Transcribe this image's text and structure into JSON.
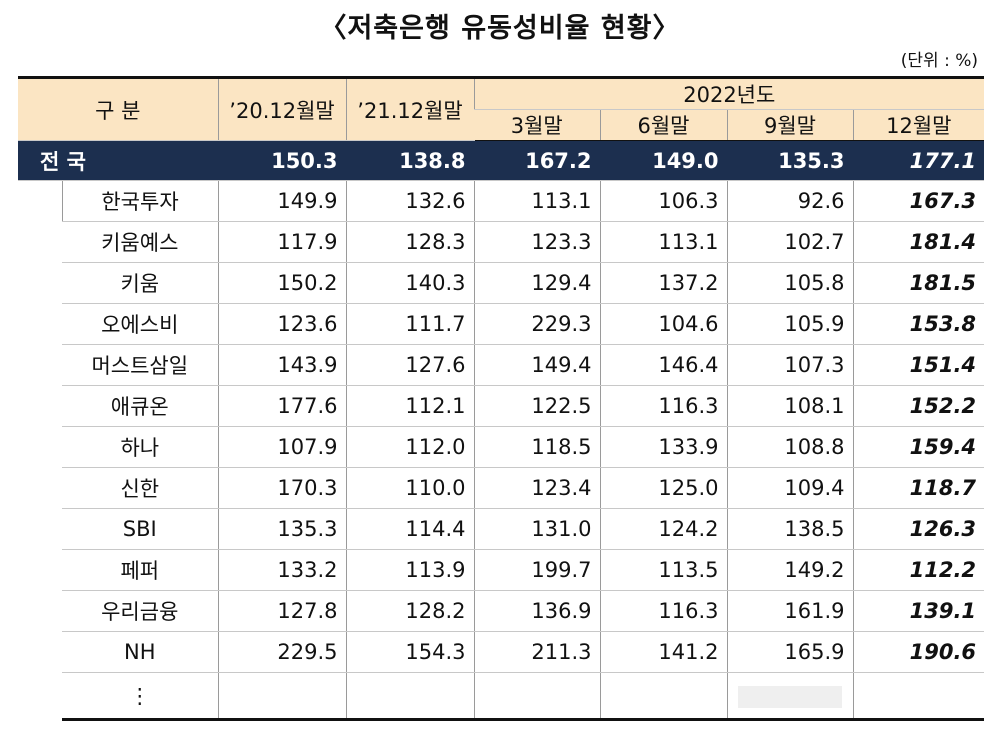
{
  "title": "〈저축은행 유동성비율 현황〉",
  "unit": "(단위 : %)",
  "table": {
    "header": {
      "category": "구     분",
      "columns": [
        "’20.12월말",
        "’21.12월말"
      ],
      "group": "2022년도",
      "subcolumns": [
        "3월말",
        "6월말",
        "9월말",
        "12월말"
      ]
    },
    "total": {
      "label": "전   국",
      "values": [
        "150.3",
        "138.8",
        "167.2",
        "149.0",
        "135.3",
        "177.1"
      ]
    },
    "rows": [
      {
        "label": "한국투자",
        "values": [
          "149.9",
          "132.6",
          "113.1",
          "106.3",
          "92.6",
          "167.3"
        ]
      },
      {
        "label": "키움예스",
        "values": [
          "117.9",
          "128.3",
          "123.3",
          "113.1",
          "102.7",
          "181.4"
        ]
      },
      {
        "label": "키움",
        "values": [
          "150.2",
          "140.3",
          "129.4",
          "137.2",
          "105.8",
          "181.5"
        ]
      },
      {
        "label": "오에스비",
        "values": [
          "123.6",
          "111.7",
          "229.3",
          "104.6",
          "105.9",
          "153.8"
        ]
      },
      {
        "label": "머스트삼일",
        "values": [
          "143.9",
          "127.6",
          "149.4",
          "146.4",
          "107.3",
          "151.4"
        ]
      },
      {
        "label": "애큐온",
        "values": [
          "177.6",
          "112.1",
          "122.5",
          "116.3",
          "108.1",
          "152.2"
        ]
      },
      {
        "label": "하나",
        "values": [
          "107.9",
          "112.0",
          "118.5",
          "133.9",
          "108.8",
          "159.4"
        ]
      },
      {
        "label": "신한",
        "values": [
          "170.3",
          "110.0",
          "123.4",
          "125.0",
          "109.4",
          "118.7"
        ]
      },
      {
        "label": "SBI",
        "values": [
          "135.3",
          "114.4",
          "131.0",
          "124.2",
          "138.5",
          "126.3"
        ]
      },
      {
        "label": "페퍼",
        "values": [
          "133.2",
          "113.9",
          "199.7",
          "113.5",
          "149.2",
          "112.2"
        ]
      },
      {
        "label": "우리금융",
        "values": [
          "127.8",
          "128.2",
          "136.9",
          "116.3",
          "161.9",
          "139.1"
        ]
      },
      {
        "label": "NH",
        "values": [
          "229.5",
          "154.3",
          "211.3",
          "141.2",
          "165.9",
          "190.6"
        ]
      }
    ],
    "ellipsis": "⋮"
  }
}
